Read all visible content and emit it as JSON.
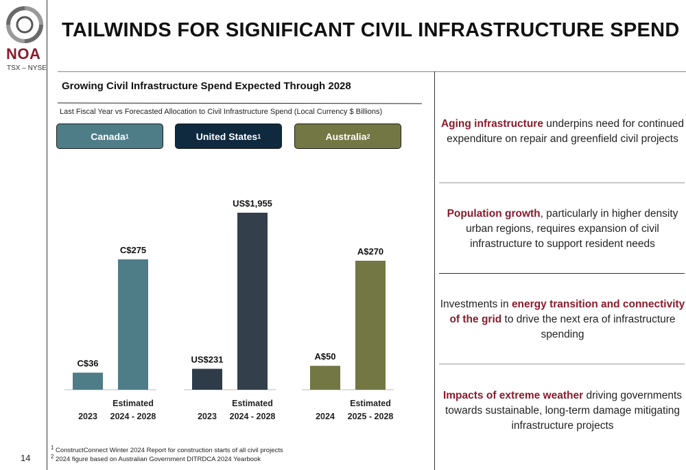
{
  "header": {
    "title": "TAILWINDS FOR SIGNIFICANT CIVIL INFRASTRUCTURE SPEND",
    "logo_text": "NOA",
    "ticker": "TSX – NYSE"
  },
  "left": {
    "subtitle": "Growing Civil Infrastructure Spend Expected Through 2028",
    "caption": "Last Fiscal Year vs Forecasted Allocation to Civil Infrastructure Spend (Local Currency $ Billions)",
    "regions": [
      {
        "label": "Canada",
        "sup": "1",
        "color": "#4e7d88"
      },
      {
        "label": "United States",
        "sup": "1",
        "color": "#0f2a3f"
      },
      {
        "label": "Australia",
        "sup": "2",
        "color": "#737743"
      }
    ]
  },
  "chart_data": {
    "type": "bar",
    "groups": [
      {
        "region": "Canada",
        "color": "#4e7d88",
        "bars": [
          {
            "category": "2023",
            "value": 36,
            "label": "C$36"
          },
          {
            "category": "Estimated 2024 - 2028",
            "value": 275,
            "label": "C$275"
          }
        ]
      },
      {
        "region": "United States",
        "color_first": "#2d3c48",
        "color": "#333f4b",
        "bars": [
          {
            "category": "2023",
            "value": 231,
            "label": "US$231"
          },
          {
            "category": "Estimated 2024 - 2028",
            "value": 1955,
            "label": "US$1,955"
          }
        ]
      },
      {
        "region": "Australia",
        "color": "#737743",
        "bars": [
          {
            "category": "2024",
            "value": 50,
            "label": "A$50"
          },
          {
            "category": "Estimated 2025 - 2028",
            "value": 270,
            "label": "A$270"
          }
        ]
      }
    ],
    "tick_labels": [
      [
        "2023",
        "Estimated 2024 - 2028"
      ],
      [
        "2023",
        "Estimated 2024 - 2028"
      ],
      [
        "2024",
        "Estimated 2025 - 2028"
      ]
    ]
  },
  "footnotes": [
    {
      "sup": "1",
      "text": "ConstructConnect Winter 2024 Report for construction starts of all civil projects"
    },
    {
      "sup": "2",
      "text": "2024 figure based on Australian Government DITRDCA 2024 Yearbook"
    }
  ],
  "page_number": "14",
  "right": {
    "items": [
      {
        "before": "",
        "bold": "Aging infrastructure",
        "after": " underpins need for continued expenditure on repair and greenfield civil projects"
      },
      {
        "before": "",
        "bold": "Population growth",
        "after": ", particularly in higher density urban regions, requires expansion of civil infrastructure to support resident needs"
      },
      {
        "before": "Investments in ",
        "bold": "energy transition and connectivity of the grid",
        "after": " to drive the next era of infrastructure spending"
      },
      {
        "before": "",
        "bold": "Impacts of extreme weather",
        "after": " driving governments towards sustainable, long-term damage mitigating infrastructure  projects"
      }
    ]
  }
}
